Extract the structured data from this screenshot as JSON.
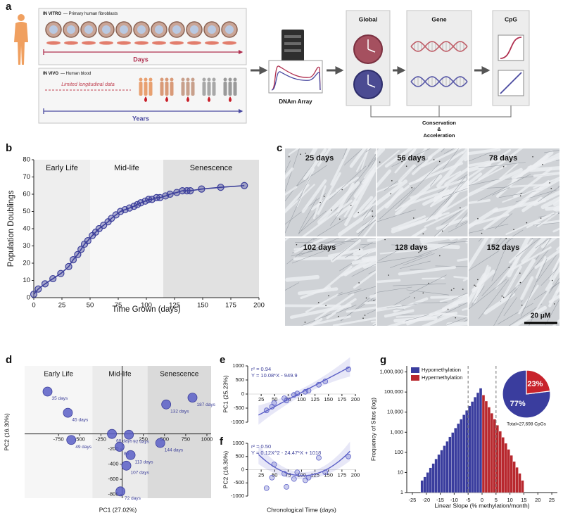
{
  "diagram": {
    "panel": "a",
    "in_vitro": {
      "title": "IN VITRO",
      "subtitle": "— Primary human fibroblasts",
      "axis": "Days"
    },
    "in_vivo": {
      "title": "IN VIVO",
      "subtitle": "— Human blood",
      "note": "Limited longitudinal data",
      "axis": "Years"
    },
    "array": "DNAm Array",
    "levels": [
      "Global",
      "Gene",
      "CpG"
    ],
    "outcome": [
      "Conservation",
      "&",
      "Acceleration"
    ]
  },
  "micrographs": {
    "panel": "c",
    "timepoints": [
      "25 days",
      "56 days",
      "78 days",
      "102 days",
      "128 days",
      "152 days"
    ],
    "scale_bar": "20 μM"
  },
  "chart_data": [
    {
      "panel": "b",
      "type": "line",
      "xlabel": "Time Grown (days)",
      "ylabel": "Population Doublings",
      "xlim": [
        0,
        200
      ],
      "ylim": [
        0,
        80
      ],
      "xticks": [
        0,
        25,
        50,
        75,
        100,
        125,
        150,
        175,
        200
      ],
      "yticks": [
        0,
        10,
        20,
        30,
        40,
        50,
        60,
        70,
        80
      ],
      "regions": [
        {
          "label": "Early Life",
          "start": 0,
          "end": 50,
          "color": "#eeeeee"
        },
        {
          "label": "Mid-life",
          "start": 50,
          "end": 115,
          "color": "#f7f7f7"
        },
        {
          "label": "Senescence",
          "start": 115,
          "end": 200,
          "color": "#e1e1e1"
        }
      ],
      "series": [
        {
          "color": "#3c3f9a",
          "x": [
            0,
            4,
            10,
            17,
            24,
            31,
            35,
            39,
            42,
            45,
            48,
            52,
            55,
            58,
            62,
            66,
            69,
            73,
            77,
            81,
            85,
            89,
            92,
            95,
            99,
            102,
            105,
            109,
            112,
            117,
            121,
            127,
            132,
            136,
            139,
            149,
            166,
            187
          ],
          "values": [
            2,
            5,
            8,
            11,
            14,
            18,
            22,
            25,
            28,
            31,
            33,
            36,
            38,
            40,
            42,
            44,
            46,
            48,
            50,
            51,
            52,
            53,
            54,
            55,
            56,
            57,
            57,
            58,
            58,
            59,
            60,
            61,
            62,
            62,
            62,
            63,
            64,
            65
          ]
        }
      ]
    },
    {
      "panel": "d",
      "type": "scatter",
      "xlabel": "PC1 (27.02%)",
      "ylabel": "PC2 (16.30%)",
      "xlim": [
        -1150,
        1050
      ],
      "ylim": [
        -850,
        900
      ],
      "xticks": [
        -750,
        -500,
        -250,
        250,
        500,
        750,
        1000
      ],
      "yticks": [
        -800,
        -600,
        -400,
        -200
      ],
      "regions": [
        {
          "label": "Early Life",
          "start": -1150,
          "end": -350,
          "color": "#f6f6f6"
        },
        {
          "label": "Mid-life",
          "start": -350,
          "end": 300,
          "color": "#ebebeb"
        },
        {
          "label": "Senescence",
          "start": 300,
          "end": 1050,
          "color": "#dadada"
        }
      ],
      "color": "#5b5fc7",
      "labels": [
        "35 days",
        "45 days",
        "49 days",
        "68 days",
        "72 days",
        "86",
        "92 days",
        "107 days",
        "113 days",
        "132 days",
        "144 days",
        "187 days"
      ],
      "x": [
        -880,
        -640,
        -600,
        -120,
        -20,
        -30,
        80,
        50,
        100,
        520,
        450,
        830
      ],
      "values": [
        560,
        280,
        -80,
        0,
        -760,
        -170,
        -10,
        -420,
        -280,
        390,
        -120,
        480
      ]
    },
    {
      "panel": "e",
      "type": "scatter",
      "ylabel": "PC1 (25.23%)",
      "xlim": [
        0,
        200
      ],
      "ylim": [
        -1000,
        1000
      ],
      "xticks": [
        25,
        50,
        75,
        100,
        125,
        150,
        175,
        200
      ],
      "yticks": [
        -1000,
        -500,
        0,
        500,
        1000
      ],
      "annotations": [
        "r² = 0.94",
        "Y = 10.08*X - 949.9"
      ],
      "fit": {
        "coefficients": [
          10.08,
          -949.9
        ]
      },
      "color": "#5b5fc7",
      "x": [
        35,
        45,
        49,
        68,
        72,
        86,
        92,
        107,
        113,
        132,
        144,
        187
      ],
      "values": [
        -580,
        -450,
        -320,
        -150,
        -230,
        -30,
        20,
        80,
        120,
        330,
        450,
        880
      ]
    },
    {
      "panel": "f",
      "type": "scatter",
      "xlabel": "Chronological Time (days)",
      "ylabel": "PC2 (16.30%)",
      "xlim": [
        0,
        200
      ],
      "ylim": [
        -1000,
        1000
      ],
      "xticks": [
        25,
        50,
        75,
        100,
        125,
        150,
        175,
        200
      ],
      "yticks": [
        -1000,
        -500,
        0,
        500,
        1000
      ],
      "annotations": [
        "r² = 0.50",
        "Y = 0.12X^2 - 24.47*X + 1018"
      ],
      "fit": {
        "coefficients": [
          0.12,
          -24.47,
          1018
        ]
      },
      "color": "#5b5fc7",
      "x": [
        35,
        45,
        49,
        68,
        72,
        86,
        92,
        107,
        113,
        132,
        144,
        187
      ],
      "values": [
        -700,
        -300,
        200,
        -150,
        -650,
        -350,
        -100,
        -400,
        -300,
        450,
        -100,
        500
      ]
    },
    {
      "panel": "g",
      "type": "histogram",
      "xlabel": "Linear Slope (% methylation/month)",
      "ylabel": "Frequency of Sites (log)",
      "log_y": true,
      "xlim": [
        -27,
        27
      ],
      "ylim": [
        1,
        2000000
      ],
      "xticks": [
        -25,
        -20,
        -15,
        -10,
        -5,
        0,
        5,
        10,
        15,
        20,
        25
      ],
      "yticks": [
        1,
        10,
        100,
        {
          "value": 1000,
          "label": "1,000"
        },
        {
          "value": 10000,
          "label": "10,000"
        },
        {
          "value": 100000,
          "label": "100,000"
        },
        {
          "value": 1000000,
          "label": "1,000,000"
        }
      ],
      "vlines": [
        -5,
        5
      ],
      "legend": "top-left",
      "series": [
        {
          "name": "Hypomethylation",
          "color": "#3a3d9e",
          "bins": [
            -22,
            -21,
            -20,
            -19,
            -18,
            -17,
            -16,
            -15,
            -14,
            -13,
            -12,
            -11,
            -10,
            -9,
            -8,
            -7,
            -6,
            -5,
            -4,
            -3,
            -2,
            -1,
            0
          ],
          "values": [
            4,
            6,
            10,
            17,
            28,
            47,
            78,
            129,
            214,
            355,
            589,
            977,
            1622,
            2692,
            4467,
            7413,
            12300,
            20400,
            33900,
            56200,
            93300,
            155000
          ]
        },
        {
          "name": "Hypermethylation",
          "color": "#b8282e",
          "bins": [
            0,
            1,
            2,
            3,
            4,
            5,
            6,
            7,
            8,
            9,
            10,
            11,
            12,
            13,
            14,
            15
          ],
          "values": [
            70800,
            35500,
            17800,
            8900,
            4470,
            2240,
            1120,
            562,
            282,
            141,
            71,
            35,
            18,
            9,
            4
          ]
        }
      ],
      "inset": {
        "type": "pie",
        "values": [
          77,
          23
        ],
        "value_labels": [
          "77%",
          "23%"
        ],
        "colors": [
          "#3a3d9e",
          "#c8232c"
        ],
        "annotation": "Total=27,698 CpGs"
      }
    }
  ]
}
